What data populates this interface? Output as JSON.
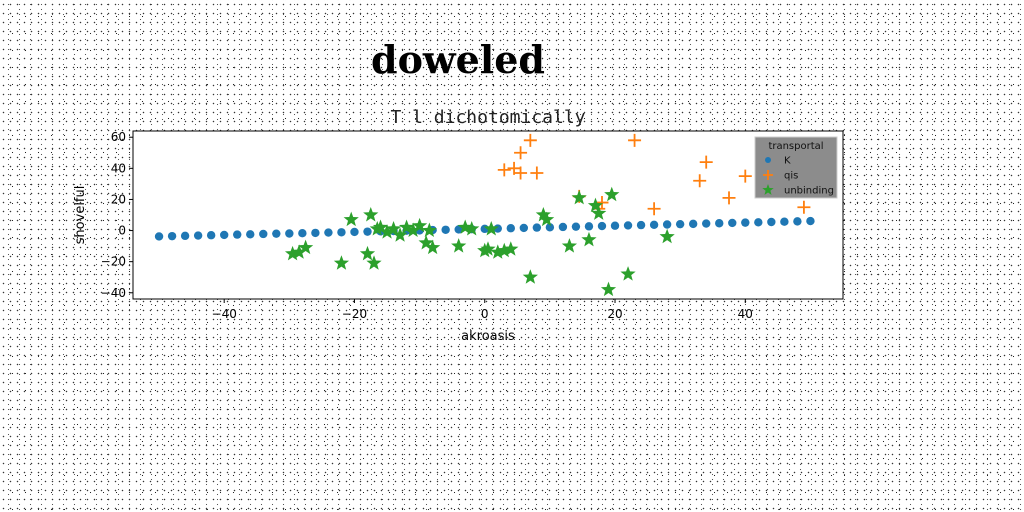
{
  "title": "doweled",
  "chart_data": {
    "type": "scatter",
    "title": "T l dichotomically",
    "xlabel": "akroasis",
    "ylabel": "shovelful",
    "xlim": [
      -54,
      55
    ],
    "ylim": [
      -44,
      64
    ],
    "xticks": [
      -40,
      -20,
      0,
      20,
      40
    ],
    "yticks": [
      -40,
      -20,
      0,
      20,
      40,
      60
    ],
    "grid": false,
    "legend": {
      "title": "transportal",
      "placement": "top-right"
    },
    "series": [
      {
        "name": "K",
        "marker": "circle",
        "color": "#1f77b4",
        "x": [
          -50,
          -48,
          -46,
          -44,
          -42,
          -40,
          -38,
          -36,
          -34,
          -32,
          -30,
          -28,
          -26,
          -24,
          -22,
          -20,
          -18,
          -16,
          -14,
          -12,
          -10,
          -8,
          -6,
          -4,
          -2,
          0,
          2,
          4,
          6,
          8,
          10,
          12,
          14,
          16,
          18,
          20,
          22,
          24,
          26,
          28,
          30,
          32,
          34,
          36,
          38,
          40,
          42,
          44,
          46,
          48,
          50
        ],
        "y": [
          -3.8,
          -3.6,
          -3.4,
          -3.2,
          -3.0,
          -2.8,
          -2.6,
          -2.4,
          -2.2,
          -2.0,
          -1.9,
          -1.7,
          -1.5,
          -1.3,
          -1.1,
          -0.9,
          -0.7,
          -0.5,
          -0.3,
          -0.1,
          0.1,
          0.3,
          0.5,
          0.7,
          0.9,
          1.1,
          1.3,
          1.5,
          1.7,
          1.9,
          2.1,
          2.3,
          2.5,
          2.7,
          2.9,
          3.1,
          3.3,
          3.5,
          3.7,
          3.9,
          4.1,
          4.3,
          4.5,
          4.7,
          4.9,
          5.1,
          5.3,
          5.5,
          5.7,
          5.9,
          6.1
        ]
      },
      {
        "name": "qis",
        "marker": "plus",
        "color": "#ff7f0e",
        "x": [
          3,
          4.5,
          5.5,
          5.5,
          7,
          8,
          14.5,
          17.5,
          18,
          23,
          26,
          33,
          34,
          37.5,
          40,
          49
        ],
        "y": [
          39,
          40,
          50,
          37,
          58,
          37,
          22,
          14,
          18,
          58,
          14,
          32,
          44,
          21,
          35,
          15
        ]
      },
      {
        "name": "unbinding",
        "marker": "star",
        "color": "#2ca02c",
        "x": [
          -29.5,
          -28.5,
          -27.5,
          -22,
          -20.5,
          -18,
          -17.5,
          -17,
          -16.5,
          -16,
          -15,
          -14,
          -13,
          -12,
          -11,
          -10,
          -9,
          -8.5,
          -8,
          -4,
          -3,
          -2,
          0,
          0.5,
          1,
          2,
          3,
          4,
          7,
          9,
          9.5,
          13,
          14.5,
          16,
          17,
          17.5,
          19,
          19.5,
          22,
          28
        ],
        "y": [
          -15,
          -14,
          -11,
          -21,
          7,
          -15,
          10,
          -21,
          1,
          2,
          -1,
          1,
          -3,
          2,
          0,
          3,
          -8,
          0,
          -11,
          -10,
          2,
          1,
          -13,
          -12,
          1,
          -14,
          -13,
          -12,
          -30,
          10,
          7,
          -10,
          21,
          -6,
          16,
          11,
          -38,
          23,
          -28,
          -4
        ]
      }
    ]
  }
}
